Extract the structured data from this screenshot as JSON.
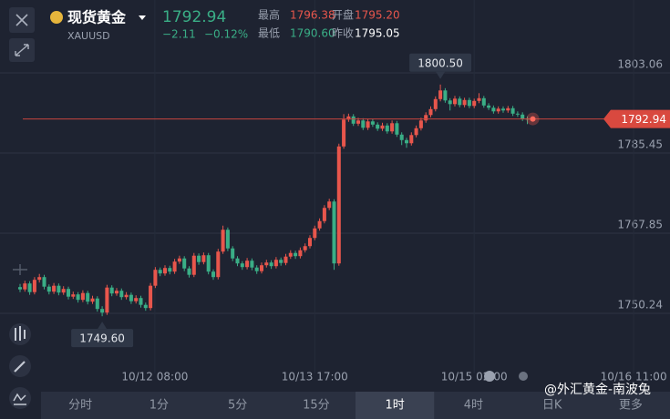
{
  "header": {
    "name": "现货黄金",
    "symbol": "XAUUSD",
    "price": "1792.94",
    "change": "−2.11",
    "change_pct": "−0.12%",
    "stats": [
      {
        "label": "最高",
        "value": "1796.38"
      },
      {
        "label": "开盘",
        "value": "1795.20"
      },
      {
        "label": "最低",
        "value": "1790.60"
      },
      {
        "label": "昨收",
        "value": "1795.05"
      }
    ]
  },
  "chart_data": {
    "type": "candlestick",
    "up_color": "#e8564c",
    "down_color": "#3aae86",
    "grid": true,
    "ylim": [
      1737.03,
      1819.07
    ],
    "yticks": [
      1803.06,
      1785.45,
      1767.85,
      1750.24
    ],
    "xlim": [
      -4.15,
      134.53
    ],
    "xticks": [
      {
        "value": 27.9,
        "label": "10/12 08:00"
      },
      {
        "value": 61,
        "label": "10/13 17:00"
      },
      {
        "value": 94,
        "label": "10/15 02:00"
      },
      {
        "value": 127,
        "label": "10/16 11:00"
      }
    ],
    "high_label": {
      "value": 1800.5,
      "label": "1800.50"
    },
    "low_label": {
      "value": 1749.6,
      "label": "1749.60"
    },
    "last_price": 1792.94,
    "candles": [
      [
        1756.0,
        1756.7,
        1754.9,
        1755.5
      ],
      [
        1755.5,
        1757.4,
        1755.0,
        1756.8
      ],
      [
        1756.8,
        1757.3,
        1754.3,
        1754.9
      ],
      [
        1754.9,
        1758.2,
        1754.4,
        1757.6
      ],
      [
        1757.6,
        1758.9,
        1757.0,
        1758.2
      ],
      [
        1758.2,
        1758.7,
        1755.5,
        1756.1
      ],
      [
        1756.1,
        1756.6,
        1754.4,
        1755.0
      ],
      [
        1755.0,
        1756.9,
        1754.5,
        1756.3
      ],
      [
        1756.3,
        1756.8,
        1754.2,
        1754.8
      ],
      [
        1754.8,
        1756.2,
        1754.3,
        1755.6
      ],
      [
        1755.6,
        1756.1,
        1753.3,
        1753.9
      ],
      [
        1753.9,
        1755.0,
        1753.4,
        1754.4
      ],
      [
        1754.4,
        1754.9,
        1752.6,
        1753.2
      ],
      [
        1753.2,
        1755.3,
        1752.7,
        1754.7
      ],
      [
        1754.7,
        1755.2,
        1752.2,
        1752.8
      ],
      [
        1752.8,
        1754.1,
        1752.3,
        1753.5
      ],
      [
        1753.5,
        1754.0,
        1750.6,
        1751.2
      ],
      [
        1751.2,
        1751.8,
        1749.6,
        1750.4
      ],
      [
        1750.4,
        1756.5,
        1749.9,
        1755.9
      ],
      [
        1755.9,
        1756.4,
        1754.0,
        1754.6
      ],
      [
        1754.6,
        1755.8,
        1754.1,
        1755.2
      ],
      [
        1755.2,
        1755.7,
        1753.2,
        1753.8
      ],
      [
        1753.8,
        1754.9,
        1753.3,
        1754.3
      ],
      [
        1754.3,
        1754.8,
        1752.3,
        1752.9
      ],
      [
        1752.9,
        1754.2,
        1752.4,
        1753.6
      ],
      [
        1753.6,
        1754.1,
        1751.5,
        1752.1
      ],
      [
        1752.1,
        1752.6,
        1750.8,
        1751.4
      ],
      [
        1751.4,
        1756.9,
        1750.9,
        1756.3
      ],
      [
        1756.3,
        1760.4,
        1755.8,
        1759.8
      ],
      [
        1759.8,
        1760.3,
        1758.4,
        1759.0
      ],
      [
        1759.0,
        1760.8,
        1758.5,
        1760.2
      ],
      [
        1760.2,
        1760.7,
        1758.8,
        1759.4
      ],
      [
        1759.4,
        1762.2,
        1758.9,
        1761.6
      ],
      [
        1761.6,
        1762.9,
        1761.1,
        1762.3
      ],
      [
        1762.3,
        1762.8,
        1759.5,
        1760.1
      ],
      [
        1760.1,
        1760.6,
        1758.1,
        1758.7
      ],
      [
        1758.7,
        1763.5,
        1758.2,
        1762.9
      ],
      [
        1762.9,
        1763.4,
        1760.9,
        1761.5
      ],
      [
        1761.5,
        1763.6,
        1761.0,
        1763.0
      ],
      [
        1763.0,
        1763.5,
        1758.8,
        1759.4
      ],
      [
        1759.4,
        1759.9,
        1757.6,
        1758.2
      ],
      [
        1758.2,
        1764.4,
        1757.7,
        1763.8
      ],
      [
        1763.8,
        1769.5,
        1763.3,
        1768.6
      ],
      [
        1768.6,
        1769.1,
        1763.9,
        1764.5
      ],
      [
        1764.5,
        1765.0,
        1761.7,
        1762.3
      ],
      [
        1762.3,
        1762.8,
        1760.6,
        1761.2
      ],
      [
        1761.2,
        1761.7,
        1759.8,
        1760.4
      ],
      [
        1760.4,
        1762.4,
        1759.9,
        1761.8
      ],
      [
        1761.8,
        1762.3,
        1759.7,
        1760.3
      ],
      [
        1760.3,
        1760.8,
        1758.9,
        1759.5
      ],
      [
        1759.5,
        1761.4,
        1759.0,
        1760.8
      ],
      [
        1760.8,
        1762.0,
        1760.3,
        1761.4
      ],
      [
        1761.4,
        1761.9,
        1760.0,
        1760.6
      ],
      [
        1760.6,
        1762.6,
        1760.1,
        1762.0
      ],
      [
        1762.0,
        1762.5,
        1760.7,
        1761.3
      ],
      [
        1761.3,
        1763.3,
        1760.8,
        1762.7
      ],
      [
        1762.7,
        1764.1,
        1762.2,
        1763.5
      ],
      [
        1763.5,
        1764.0,
        1762.2,
        1762.8
      ],
      [
        1762.8,
        1764.7,
        1762.3,
        1764.1
      ],
      [
        1764.1,
        1765.6,
        1763.6,
        1765.0
      ],
      [
        1765.0,
        1767.4,
        1764.5,
        1766.8
      ],
      [
        1766.8,
        1769.5,
        1766.3,
        1768.9
      ],
      [
        1768.9,
        1771.1,
        1768.4,
        1770.5
      ],
      [
        1770.5,
        1774.0,
        1770.0,
        1773.4
      ],
      [
        1773.4,
        1775.4,
        1772.9,
        1774.8
      ],
      [
        1774.8,
        1775.3,
        1759.8,
        1761.2
      ],
      [
        1761.2,
        1787.5,
        1760.7,
        1786.9
      ],
      [
        1786.9,
        1794.0,
        1786.4,
        1792.8
      ],
      [
        1792.8,
        1794.1,
        1792.3,
        1793.5
      ],
      [
        1793.5,
        1794.0,
        1791.4,
        1791.9
      ],
      [
        1791.9,
        1793.2,
        1791.4,
        1792.6
      ],
      [
        1792.6,
        1793.1,
        1790.5,
        1791.0
      ],
      [
        1791.0,
        1793.0,
        1790.5,
        1792.4
      ],
      [
        1792.4,
        1792.9,
        1791.2,
        1791.7
      ],
      [
        1791.7,
        1792.2,
        1790.3,
        1790.8
      ],
      [
        1790.8,
        1792.1,
        1790.3,
        1791.5
      ],
      [
        1791.5,
        1792.0,
        1789.7,
        1790.2
      ],
      [
        1790.2,
        1792.6,
        1789.7,
        1792.0
      ],
      [
        1792.0,
        1792.5,
        1789.0,
        1789.5
      ],
      [
        1789.5,
        1790.0,
        1787.2,
        1788.3
      ],
      [
        1788.3,
        1788.8,
        1786.6,
        1787.6
      ],
      [
        1787.6,
        1790.0,
        1787.1,
        1789.4
      ],
      [
        1789.4,
        1791.5,
        1788.9,
        1790.9
      ],
      [
        1790.9,
        1793.2,
        1790.4,
        1792.6
      ],
      [
        1792.6,
        1794.4,
        1792.1,
        1793.8
      ],
      [
        1793.8,
        1795.7,
        1793.3,
        1795.1
      ],
      [
        1795.1,
        1797.9,
        1794.6,
        1797.3
      ],
      [
        1797.3,
        1800.5,
        1796.8,
        1799.2
      ],
      [
        1799.2,
        1799.7,
        1796.5,
        1797.0
      ],
      [
        1797.0,
        1797.5,
        1794.8,
        1796.2
      ],
      [
        1796.2,
        1798.0,
        1795.7,
        1797.4
      ],
      [
        1797.4,
        1797.9,
        1795.5,
        1796.0
      ],
      [
        1796.0,
        1797.6,
        1795.5,
        1797.1
      ],
      [
        1797.1,
        1797.6,
        1795.3,
        1795.8
      ],
      [
        1795.8,
        1797.4,
        1795.3,
        1796.9
      ],
      [
        1796.9,
        1798.6,
        1796.4,
        1797.5
      ],
      [
        1797.5,
        1798.0,
        1795.4,
        1795.9
      ],
      [
        1795.9,
        1796.4,
        1794.9,
        1795.4
      ],
      [
        1795.4,
        1795.9,
        1794.1,
        1794.6
      ],
      [
        1794.6,
        1795.7,
        1794.1,
        1795.2
      ],
      [
        1795.2,
        1795.7,
        1794.3,
        1794.8
      ],
      [
        1794.8,
        1795.8,
        1794.3,
        1795.3
      ],
      [
        1795.3,
        1795.8,
        1793.6,
        1794.1
      ],
      [
        1794.1,
        1794.6,
        1793.4,
        1793.9
      ],
      [
        1793.9,
        1794.4,
        1792.5,
        1793.0
      ],
      [
        1793.0,
        1793.5,
        1791.8,
        1792.94
      ]
    ]
  },
  "toolbar": {
    "tabs": [
      "分时",
      "1分",
      "5分",
      "15分",
      "1时",
      "4时",
      "日K",
      "更多"
    ],
    "active": 4
  },
  "watermark": "@外汇黄金-南波兔"
}
